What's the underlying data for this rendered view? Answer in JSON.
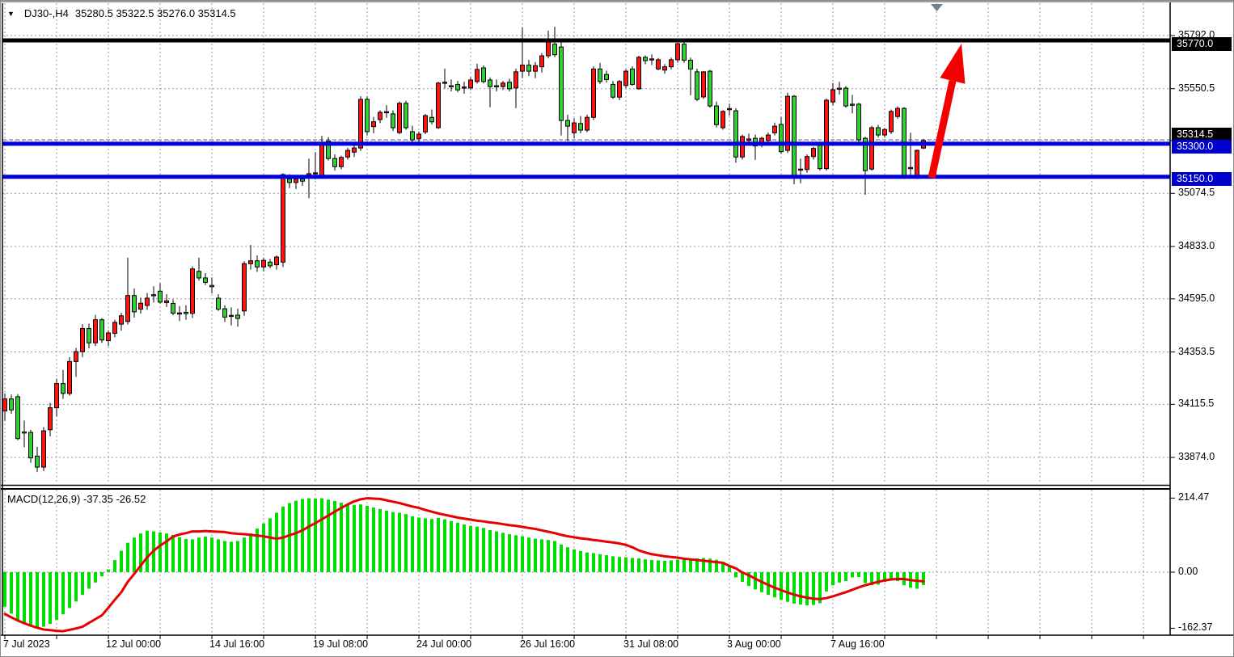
{
  "header": {
    "dropdown_icon": "▼",
    "symbol_period": "DJ30-,H4",
    "ohlc_text": "35280.5 35322.5 35276.0 35314.5"
  },
  "colors": {
    "bull_candle": "#ff1414",
    "bear_candle": "#32cd32",
    "wick": "#000000",
    "grid": "#8a9ab0",
    "histogram": "#00dd00",
    "signal_line": "#e60000",
    "support_line": "#0000dd",
    "resistance_line": "#000000",
    "arrow": "#f50000",
    "badge_black": "#000000",
    "badge_blue": "#0000cc",
    "ask_line": "#b0b0b0",
    "shift_marker": "#708090"
  },
  "chart_data": [
    {
      "type": "candlestick",
      "title": "DJ30-,H4",
      "x_labels": [
        "7 Jul 2023",
        "12 Jul 00:00",
        "14 Jul 16:00",
        "19 Jul 08:00",
        "24 Jul 00:00",
        "26 Jul 16:00",
        "31 Jul 08:00",
        "3 Aug 00:00",
        "7 Aug 16:00"
      ],
      "y_ticks": [
        35792.0,
        35550.5,
        35314.5,
        35074.5,
        34833.0,
        34595.0,
        34353.5,
        34115.5,
        33874.0
      ],
      "ylim": [
        33760,
        35840
      ],
      "grid": true,
      "price_lines": [
        {
          "label": "35770.0",
          "value": 35770.0,
          "style": "black-thick"
        },
        {
          "label": "35300.0",
          "value": 35300.0,
          "style": "blue-thick"
        },
        {
          "label": "35150.0",
          "value": 35150.0,
          "style": "blue-thick"
        }
      ],
      "current_price": {
        "label": "35314.5",
        "value": 35314.5
      },
      "annotations": [
        {
          "type": "arrow",
          "direction": "up",
          "color": "#f50000"
        },
        {
          "type": "shift-marker",
          "shape": "triangle-down"
        }
      ],
      "candles": [
        [
          34085,
          34165,
          34040,
          34140
        ],
        [
          34140,
          34160,
          34072,
          34090
        ],
        [
          34150,
          34162,
          33952,
          33960
        ],
        [
          33990,
          34042,
          33920,
          33985
        ],
        [
          33988,
          34000,
          33850,
          33872
        ],
        [
          33880,
          33922,
          33808,
          33830
        ],
        [
          33830,
          34012,
          33812,
          33995
        ],
        [
          34000,
          34122,
          33970,
          34100
        ],
        [
          34100,
          34232,
          34060,
          34210
        ],
        [
          34210,
          34272,
          34140,
          34165
        ],
        [
          34165,
          34330,
          34155,
          34310
        ],
        [
          34310,
          34372,
          34240,
          34355
        ],
        [
          34355,
          34480,
          34330,
          34460
        ],
        [
          34460,
          34482,
          34370,
          34395
        ],
        [
          34395,
          34522,
          34380,
          34500
        ],
        [
          34500,
          34508,
          34395,
          34408
        ],
        [
          34405,
          34452,
          34380,
          34440
        ],
        [
          34438,
          34500,
          34420,
          34488
        ],
        [
          34480,
          34532,
          34450,
          34518
        ],
        [
          34492,
          34782,
          34478,
          34610
        ],
        [
          34610,
          34642,
          34510,
          34536
        ],
        [
          34548,
          34600,
          34528,
          34575
        ],
        [
          34565,
          34622,
          34545,
          34598
        ],
        [
          34610,
          34652,
          34578,
          34614
        ],
        [
          34630,
          34666,
          34574,
          34580
        ],
        [
          34578,
          34616,
          34558,
          34586
        ],
        [
          34574,
          34592,
          34520,
          34530
        ],
        [
          34526,
          34562,
          34494,
          34531
        ],
        [
          34534,
          34566,
          34500,
          34528
        ],
        [
          34529,
          34742,
          34508,
          34731
        ],
        [
          34720,
          34782,
          34678,
          34690
        ],
        [
          34690,
          34712,
          34658,
          34670
        ],
        [
          34656,
          34692,
          34620,
          34650
        ],
        [
          34598,
          34616,
          34540,
          34548
        ],
        [
          34550,
          34566,
          34490,
          34512
        ],
        [
          34516,
          34556,
          34474,
          34520
        ],
        [
          34521,
          34550,
          34468,
          34506
        ],
        [
          34540,
          34766,
          34518,
          34755
        ],
        [
          34755,
          34840,
          34728,
          34768
        ],
        [
          34768,
          34792,
          34718,
          34740
        ],
        [
          34740,
          34782,
          34720,
          34770
        ],
        [
          34762,
          34776,
          34734,
          34745
        ],
        [
          34750,
          34792,
          34728,
          34785
        ],
        [
          34762,
          35166,
          34740,
          35160
        ],
        [
          35140,
          35162,
          35098,
          35124
        ],
        [
          35124,
          35152,
          35094,
          35140
        ],
        [
          35140,
          35156,
          35108,
          35130
        ],
        [
          35158,
          35232,
          35052,
          35164
        ],
        [
          35164,
          35262,
          35138,
          35168
        ],
        [
          35150,
          35336,
          35144,
          35307
        ],
        [
          35312,
          35330,
          35224,
          35233
        ],
        [
          35233,
          35252,
          35178,
          35196
        ],
        [
          35196,
          35246,
          35184,
          35238
        ],
        [
          35240,
          35282,
          35228,
          35270
        ],
        [
          35262,
          35292,
          35240,
          35281
        ],
        [
          35281,
          35516,
          35268,
          35502
        ],
        [
          35502,
          35516,
          35338,
          35355
        ],
        [
          35378,
          35422,
          35348,
          35400
        ],
        [
          35410,
          35452,
          35394,
          35443
        ],
        [
          35442,
          35476,
          35418,
          35446
        ],
        [
          35436,
          35452,
          35358,
          35373
        ],
        [
          35351,
          35492,
          35344,
          35484
        ],
        [
          35484,
          35496,
          35364,
          35373
        ],
        [
          35355,
          35382,
          35298,
          35318
        ],
        [
          35324,
          35356,
          35308,
          35344
        ],
        [
          35354,
          35436,
          35344,
          35428
        ],
        [
          35420,
          35456,
          35388,
          35400
        ],
        [
          35373,
          35582,
          35368,
          35576
        ],
        [
          35576,
          35642,
          35552,
          35580
        ],
        [
          35564,
          35592,
          35538,
          35560
        ],
        [
          35570,
          35586,
          35534,
          35545
        ],
        [
          35554,
          35582,
          35528,
          35558
        ],
        [
          35554,
          35602,
          35544,
          35590
        ],
        [
          35583,
          35664,
          35574,
          35638
        ],
        [
          35645,
          35656,
          35574,
          35583
        ],
        [
          35590,
          35602,
          35466,
          35560
        ],
        [
          35564,
          35592,
          35538,
          35562
        ],
        [
          35560,
          35586,
          35544,
          35576
        ],
        [
          35580,
          35596,
          35538,
          35550
        ],
        [
          35554,
          35642,
          35462,
          35627
        ],
        [
          35630,
          35830,
          35598,
          35658
        ],
        [
          35658,
          35682,
          35608,
          35630
        ],
        [
          35630,
          35672,
          35598,
          35655
        ],
        [
          35650,
          35712,
          35624,
          35700
        ],
        [
          35700,
          35814,
          35688,
          35766
        ],
        [
          35753,
          35832,
          35694,
          35705
        ],
        [
          35740,
          35762,
          35338,
          35406
        ],
        [
          35406,
          35432,
          35312,
          35380
        ],
        [
          35350,
          35416,
          35324,
          35395
        ],
        [
          35392,
          35426,
          35348,
          35362
        ],
        [
          35362,
          35432,
          35352,
          35420
        ],
        [
          35420,
          35652,
          35408,
          35640
        ],
        [
          35640,
          35668,
          35572,
          35583
        ],
        [
          35615,
          35632,
          35578,
          35592
        ],
        [
          35570,
          35586,
          35504,
          35512
        ],
        [
          35512,
          35590,
          35498,
          35583
        ],
        [
          35565,
          35638,
          35552,
          35630
        ],
        [
          35640,
          35652,
          35564,
          35570
        ],
        [
          35550,
          35700,
          35546,
          35693
        ],
        [
          35693,
          35702,
          35662,
          35678
        ],
        [
          35685,
          35706,
          35658,
          35686
        ],
        [
          35640,
          35690,
          35634,
          35682
        ],
        [
          35635,
          35662,
          35618,
          35650
        ],
        [
          35650,
          35692,
          35638,
          35682
        ],
        [
          35682,
          35760,
          35668,
          35755
        ],
        [
          35753,
          35764,
          35668,
          35680
        ],
        [
          35680,
          35692,
          35520,
          35640
        ],
        [
          35627,
          35642,
          35494,
          35502
        ],
        [
          35513,
          35630,
          35504,
          35627
        ],
        [
          35630,
          35636,
          35464,
          35472
        ],
        [
          35472,
          35492,
          35374,
          35387
        ],
        [
          35373,
          35452,
          35364,
          35447
        ],
        [
          35455,
          35482,
          35428,
          35460
        ],
        [
          35450,
          35462,
          35214,
          35240
        ],
        [
          35240,
          35342,
          35228,
          35333
        ],
        [
          35315,
          35346,
          35298,
          35322
        ],
        [
          35325,
          35342,
          35226,
          35290
        ],
        [
          35293,
          35332,
          35284,
          35325
        ],
        [
          35315,
          35352,
          35304,
          35340
        ],
        [
          35350,
          35396,
          35338,
          35380
        ],
        [
          35388,
          35422,
          35254,
          35264
        ],
        [
          35270,
          35532,
          35258,
          35516
        ],
        [
          35516,
          35522,
          35116,
          35150
        ],
        [
          35183,
          35232,
          35120,
          35185
        ],
        [
          35183,
          35252,
          35168,
          35242
        ],
        [
          35242,
          35286,
          35228,
          35279
        ],
        [
          35294,
          35302,
          35178,
          35187
        ],
        [
          35187,
          35506,
          35178,
          35498
        ],
        [
          35490,
          35576,
          35474,
          35546
        ],
        [
          35553,
          35582,
          35524,
          35553
        ],
        [
          35553,
          35562,
          35464,
          35472
        ],
        [
          35480,
          35522,
          35438,
          35478
        ],
        [
          35480,
          35486,
          35308,
          35318
        ],
        [
          35325,
          35332,
          35068,
          35178
        ],
        [
          35185,
          35382,
          35178,
          35373
        ],
        [
          35373,
          35386,
          35328,
          35340
        ],
        [
          35340,
          35372,
          35330,
          35365
        ],
        [
          35355,
          35456,
          35344,
          35447
        ],
        [
          35424,
          35470,
          35414,
          35461
        ],
        [
          35461,
          35466,
          35140,
          35149
        ],
        [
          35192,
          35350,
          35146,
          35190
        ],
        [
          35146,
          35274,
          35140,
          35270
        ],
        [
          35280.5,
          35322.5,
          35276.0,
          35314.5
        ]
      ]
    },
    {
      "type": "bar",
      "title": "MACD(12,26,9)",
      "macd_value": "-37.35",
      "signal_value": "-26.52",
      "y_ticks": [
        214.47,
        0.0,
        -162.37
      ],
      "ylim": [
        -190,
        240
      ],
      "grid": true,
      "histogram": [
        -100,
        -120,
        -138,
        -150,
        -158,
        -162,
        -158,
        -150,
        -138,
        -122,
        -104,
        -85,
        -66,
        -48,
        -30,
        -12,
        8,
        35,
        62,
        85,
        100,
        112,
        120,
        118,
        115,
        112,
        108,
        101,
        96,
        95,
        100,
        103,
        100,
        95,
        90,
        88,
        90,
        100,
        112,
        126,
        141,
        156,
        172,
        190,
        200,
        207,
        212,
        214,
        213,
        214,
        210,
        206,
        201,
        197,
        194,
        196,
        192,
        187,
        183,
        178,
        174,
        172,
        168,
        162,
        158,
        156,
        154,
        157,
        153,
        148,
        143,
        138,
        134,
        132,
        128,
        122,
        118,
        114,
        110,
        107,
        104,
        100,
        97,
        95,
        93,
        90,
        80,
        72,
        66,
        61,
        57,
        55,
        52,
        49,
        46,
        44,
        43,
        41,
        40,
        37,
        35,
        34,
        33,
        34,
        36,
        37,
        39,
        40,
        41,
        39,
        36,
        30,
        20,
        -15,
        -28,
        -40,
        -50,
        -58,
        -66,
        -73,
        -80,
        -86,
        -91,
        -94,
        -96,
        -95,
        -90,
        -56,
        -38,
        -30,
        -26,
        -15,
        -14,
        -32,
        -38,
        -36,
        -28,
        -24,
        -26,
        -38,
        -45,
        -48,
        -37.35
      ],
      "signal": [
        -121,
        -131,
        -140,
        -148,
        -155,
        -161,
        -166,
        -168,
        -170,
        -171,
        -167,
        -163,
        -158,
        -147,
        -136,
        -125,
        -103,
        -80,
        -58,
        -28,
        -5,
        19,
        43,
        62,
        77,
        89,
        103,
        109,
        113,
        118,
        118,
        119,
        118,
        117,
        116,
        113,
        111,
        110,
        108,
        106,
        104,
        100,
        97,
        100,
        107,
        113,
        121,
        132,
        142,
        153,
        164,
        175,
        186,
        196,
        205,
        211,
        214,
        213,
        212,
        208,
        204,
        200,
        195,
        190,
        186,
        180,
        175,
        170,
        166,
        162,
        158,
        155,
        152,
        149,
        147,
        144,
        142,
        139,
        136,
        134,
        131,
        128,
        125,
        121,
        117,
        113,
        108,
        104,
        101,
        98,
        96,
        93,
        91,
        88,
        86,
        83,
        79,
        72,
        63,
        57,
        52,
        49,
        46,
        44,
        42,
        39,
        37,
        35,
        33,
        31,
        29,
        27,
        18,
        11,
        -1,
        -9,
        -19,
        -28,
        -37,
        -45,
        -52,
        -59,
        -65,
        -70,
        -74,
        -77,
        -78,
        -75,
        -70,
        -64,
        -58,
        -51,
        -44,
        -38,
        -33,
        -28,
        -24,
        -21,
        -19.5,
        -20,
        -23,
        -25,
        -26.52
      ]
    }
  ]
}
